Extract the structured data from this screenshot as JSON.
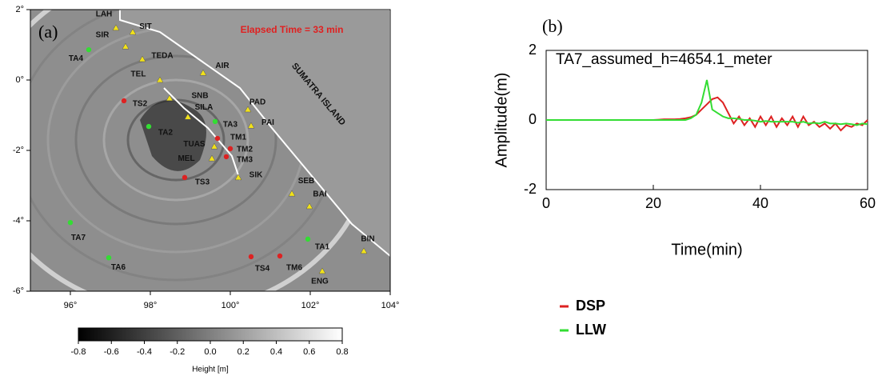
{
  "chart_data": [
    {
      "type": "map",
      "panel_label": "(a)",
      "annotation": "Elapsed Time = 33 min",
      "region_label": "SUMATRA ISLAND",
      "extra_label": "SIR",
      "xlim": [
        95,
        104
      ],
      "ylim": [
        -6,
        2
      ],
      "xticks": [
        {
          "value": 96,
          "label": "96°"
        },
        {
          "value": 98,
          "label": "98°"
        },
        {
          "value": 100,
          "label": "100°"
        },
        {
          "value": 102,
          "label": "102°"
        },
        {
          "value": 104,
          "label": "104°"
        }
      ],
      "yticks": [
        {
          "value": 2,
          "label": "2°"
        },
        {
          "value": 0,
          "label": "0°"
        },
        {
          "value": -2,
          "label": "-2°"
        },
        {
          "value": -4,
          "label": "-4°"
        },
        {
          "value": -6,
          "label": "-6°"
        }
      ],
      "stations": [
        {
          "label": "LAH",
          "lon": 97.14,
          "lat": 1.48,
          "shape": "triangle",
          "color": "#f2e21a"
        },
        {
          "label": "SIT",
          "lon": 97.56,
          "lat": 1.36,
          "shape": "triangle",
          "color": "#f2e21a"
        },
        {
          "label": null,
          "lon": 97.38,
          "lat": 0.95,
          "shape": "triangle",
          "color": "#f2e21a"
        },
        {
          "label": "TEDA",
          "lon": 97.8,
          "lat": 0.59,
          "shape": "triangle",
          "color": "#f2e21a"
        },
        {
          "label": "TEL",
          "lon": 98.24,
          "lat": 0.0,
          "shape": "triangle",
          "color": "#f2e21a"
        },
        {
          "label": "SNB",
          "lon": 98.48,
          "lat": -0.52,
          "shape": "triangle",
          "color": "#f2e21a"
        },
        {
          "label": "SILA",
          "lon": 98.94,
          "lat": -1.05,
          "shape": "triangle",
          "color": "#f2e21a"
        },
        {
          "label": "AIR",
          "lon": 99.32,
          "lat": 0.2,
          "shape": "triangle",
          "color": "#f2e21a"
        },
        {
          "label": "PAD",
          "lon": 100.44,
          "lat": -0.84,
          "shape": "triangle",
          "color": "#f2e21a"
        },
        {
          "label": "PAI",
          "lon": 100.52,
          "lat": -1.3,
          "shape": "triangle",
          "color": "#f2e21a"
        },
        {
          "label": "TUAS",
          "lon": 99.6,
          "lat": -1.89,
          "shape": "triangle",
          "color": "#f2e21a"
        },
        {
          "label": "MEL",
          "lon": 99.54,
          "lat": -2.23,
          "shape": "triangle",
          "color": "#f2e21a"
        },
        {
          "label": "SIK",
          "lon": 100.2,
          "lat": -2.77,
          "shape": "triangle",
          "color": "#f2e21a"
        },
        {
          "label": "SEB",
          "lon": 101.54,
          "lat": -3.23,
          "shape": "triangle",
          "color": "#f2e21a"
        },
        {
          "label": "BAI",
          "lon": 101.98,
          "lat": -3.59,
          "shape": "triangle",
          "color": "#f2e21a"
        },
        {
          "label": "BIN",
          "lon": 103.34,
          "lat": -4.86,
          "shape": "triangle",
          "color": "#f2e21a"
        },
        {
          "label": "ENG",
          "lon": 102.3,
          "lat": -5.43,
          "shape": "triangle",
          "color": "#f2e21a"
        },
        {
          "label": "TA4",
          "lon": 96.46,
          "lat": 0.86,
          "shape": "circle",
          "color": "#33dd33"
        },
        {
          "label": "TA7",
          "lon": 96.0,
          "lat": -4.05,
          "shape": "circle",
          "color": "#33dd33"
        },
        {
          "label": "TA6",
          "lon": 96.96,
          "lat": -5.05,
          "shape": "circle",
          "color": "#33dd33"
        },
        {
          "label": "TA2",
          "lon": 97.96,
          "lat": -1.32,
          "shape": "circle",
          "color": "#33dd33"
        },
        {
          "label": "TA3",
          "lon": 99.62,
          "lat": -1.18,
          "shape": "circle",
          "color": "#33dd33"
        },
        {
          "label": "TA1",
          "lon": 101.94,
          "lat": -4.52,
          "shape": "circle",
          "color": "#33dd33"
        },
        {
          "label": "TS2",
          "lon": 97.34,
          "lat": -0.59,
          "shape": "circle",
          "color": "#dd2222"
        },
        {
          "label": "TM1",
          "lon": 99.68,
          "lat": -1.66,
          "shape": "circle",
          "color": "#dd2222"
        },
        {
          "label": "TM2",
          "lon": 100.0,
          "lat": -1.95,
          "shape": "circle",
          "color": "#dd2222"
        },
        {
          "label": "TM3",
          "lon": 99.9,
          "lat": -2.18,
          "shape": "circle",
          "color": "#dd2222"
        },
        {
          "label": "TS3",
          "lon": 98.86,
          "lat": -2.77,
          "shape": "circle",
          "color": "#dd2222"
        },
        {
          "label": "TS4",
          "lon": 100.52,
          "lat": -5.02,
          "shape": "circle",
          "color": "#dd2222"
        },
        {
          "label": "TM6",
          "lon": 101.24,
          "lat": -5.0,
          "shape": "circle",
          "color": "#dd2222"
        }
      ],
      "colorbar": {
        "label": "Height [m]",
        "lim": [
          -0.8,
          0.8
        ],
        "ticks": [
          -0.8,
          -0.6,
          -0.4,
          -0.2,
          {
            "value": 0,
            "label": "0.0"
          },
          0.2,
          0.4,
          0.6,
          0.8
        ]
      }
    },
    {
      "type": "line",
      "panel_label": "(b)",
      "annotation": "TA7_assumed_h=4654.1_meter",
      "xlabel": "Time(min)",
      "ylabel": "Amplitude(m)",
      "xlim": [
        0,
        60
      ],
      "ylim": [
        -2,
        2
      ],
      "xticks": [
        0,
        20,
        40,
        60
      ],
      "yticks": [
        -2,
        0,
        2
      ],
      "grid": false,
      "x": [
        0,
        1,
        2,
        3,
        4,
        5,
        6,
        7,
        8,
        9,
        10,
        11,
        12,
        13,
        14,
        15,
        16,
        17,
        18,
        19,
        20,
        21,
        22,
        23,
        24,
        25,
        26,
        27,
        28,
        29,
        30,
        31,
        32,
        33,
        34,
        35,
        36,
        37,
        38,
        39,
        40,
        41,
        42,
        43,
        44,
        45,
        46,
        47,
        48,
        49,
        50,
        51,
        52,
        53,
        54,
        55,
        56,
        57,
        58,
        59,
        60
      ],
      "series": [
        {
          "name": "DSP",
          "color": "#dd2222",
          "values": [
            0,
            0,
            0,
            0,
            0,
            0,
            0,
            0,
            0,
            0,
            0,
            0,
            0,
            0,
            0,
            0,
            0,
            0,
            0,
            0,
            0,
            0.01,
            0.02,
            0.02,
            0.02,
            0.03,
            0.05,
            0.08,
            0.15,
            0.3,
            0.45,
            0.6,
            0.65,
            0.5,
            0.2,
            -0.1,
            0.1,
            -0.15,
            0.05,
            -0.2,
            0.1,
            -0.15,
            0.1,
            -0.2,
            0.05,
            -0.15,
            0.1,
            -0.2,
            0.1,
            -0.15,
            -0.05,
            -0.2,
            -0.1,
            -0.25,
            -0.1,
            -0.3,
            -0.15,
            -0.2,
            -0.1,
            -0.15,
            0
          ]
        },
        {
          "name": "LLW",
          "color": "#33dd33",
          "values": [
            0,
            0,
            0,
            0,
            0,
            0,
            0,
            0,
            0,
            0,
            0,
            0,
            0,
            0,
            0,
            0,
            0,
            0,
            0,
            0,
            0,
            0,
            0,
            0,
            0,
            0,
            0,
            0.05,
            0.15,
            0.5,
            1.15,
            0.3,
            0.2,
            0.1,
            0.05,
            0.05,
            0.03,
            0,
            0,
            -0.02,
            -0.05,
            -0.03,
            -0.05,
            -0.05,
            -0.05,
            -0.05,
            -0.05,
            -0.08,
            -0.05,
            -0.1,
            -0.08,
            -0.1,
            -0.05,
            -0.1,
            -0.1,
            -0.12,
            -0.1,
            -0.12,
            -0.15,
            -0.1,
            -0.12
          ]
        }
      ]
    }
  ]
}
